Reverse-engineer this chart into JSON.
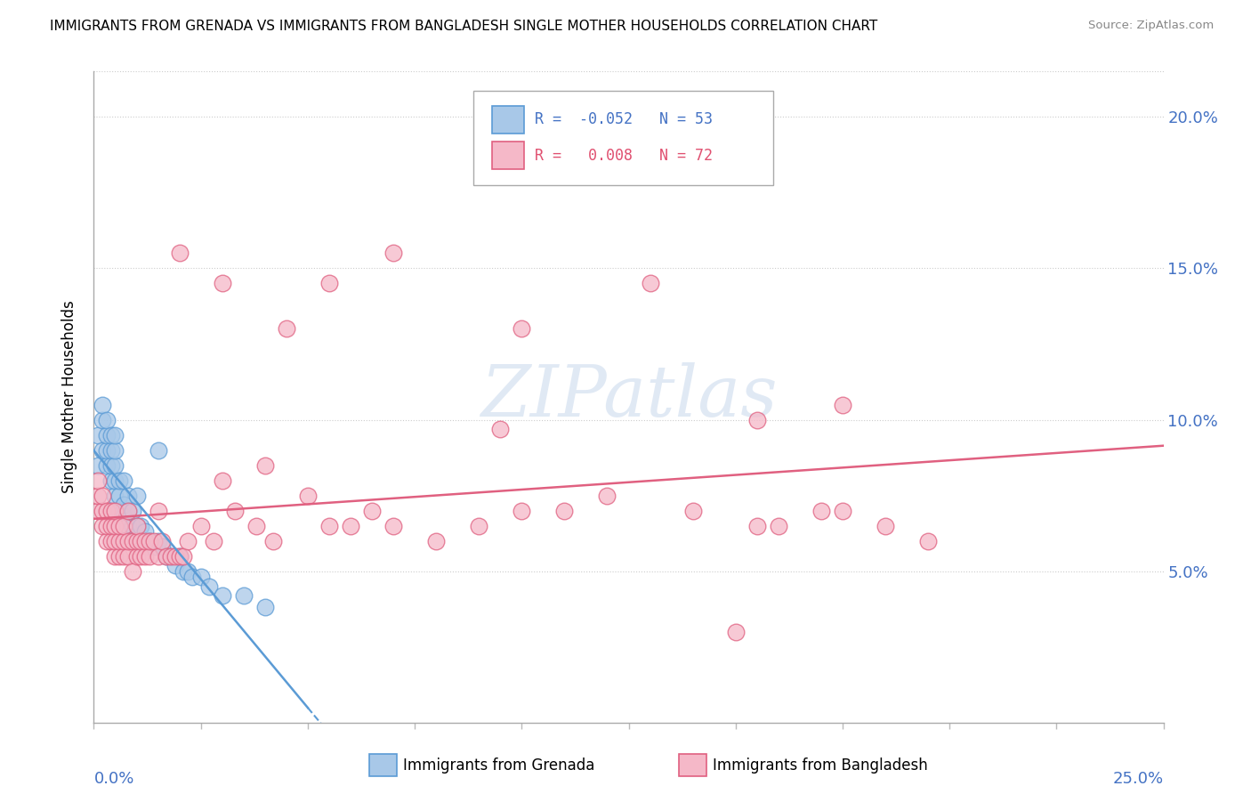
{
  "title": "IMMIGRANTS FROM GRENADA VS IMMIGRANTS FROM BANGLADESH SINGLE MOTHER HOUSEHOLDS CORRELATION CHART",
  "source": "Source: ZipAtlas.com",
  "ylabel": "Single Mother Households",
  "watermark": "ZIPatlas",
  "xlim": [
    0.0,
    0.25
  ],
  "ylim": [
    0.0,
    0.215
  ],
  "yticks": [
    0.05,
    0.1,
    0.15,
    0.2
  ],
  "ytick_labels": [
    "5.0%",
    "10.0%",
    "15.0%",
    "20.0%"
  ],
  "grenada_color": "#a8c8e8",
  "bangladesh_color": "#f5b8c8",
  "grenada_line_color": "#5b9bd5",
  "bangladesh_line_color": "#e06080",
  "grenada_R": -0.052,
  "grenada_N": 53,
  "bangladesh_R": 0.008,
  "bangladesh_N": 72,
  "grenada_x": [
    0.001,
    0.001,
    0.002,
    0.002,
    0.002,
    0.003,
    0.003,
    0.003,
    0.003,
    0.004,
    0.004,
    0.004,
    0.004,
    0.005,
    0.005,
    0.005,
    0.005,
    0.005,
    0.006,
    0.006,
    0.006,
    0.007,
    0.007,
    0.007,
    0.008,
    0.008,
    0.008,
    0.009,
    0.009,
    0.01,
    0.01,
    0.01,
    0.011,
    0.011,
    0.012,
    0.012,
    0.013,
    0.014,
    0.015,
    0.015,
    0.016,
    0.017,
    0.018,
    0.019,
    0.02,
    0.021,
    0.022,
    0.023,
    0.025,
    0.027,
    0.03,
    0.035,
    0.04
  ],
  "grenada_y": [
    0.085,
    0.095,
    0.09,
    0.1,
    0.105,
    0.085,
    0.09,
    0.095,
    0.1,
    0.08,
    0.085,
    0.09,
    0.095,
    0.075,
    0.08,
    0.085,
    0.09,
    0.095,
    0.07,
    0.075,
    0.08,
    0.068,
    0.072,
    0.08,
    0.065,
    0.07,
    0.075,
    0.065,
    0.07,
    0.06,
    0.065,
    0.075,
    0.06,
    0.065,
    0.058,
    0.063,
    0.06,
    0.058,
    0.06,
    0.09,
    0.058,
    0.055,
    0.055,
    0.052,
    0.055,
    0.05,
    0.05,
    0.048,
    0.048,
    0.045,
    0.042,
    0.042,
    0.038
  ],
  "bangladesh_x": [
    0.001,
    0.001,
    0.001,
    0.002,
    0.002,
    0.002,
    0.003,
    0.003,
    0.003,
    0.004,
    0.004,
    0.004,
    0.005,
    0.005,
    0.005,
    0.005,
    0.006,
    0.006,
    0.006,
    0.007,
    0.007,
    0.007,
    0.008,
    0.008,
    0.008,
    0.009,
    0.009,
    0.01,
    0.01,
    0.01,
    0.011,
    0.011,
    0.012,
    0.012,
    0.013,
    0.013,
    0.014,
    0.015,
    0.015,
    0.016,
    0.017,
    0.018,
    0.019,
    0.02,
    0.021,
    0.022,
    0.025,
    0.028,
    0.03,
    0.033,
    0.038,
    0.042,
    0.05,
    0.055,
    0.065,
    0.07,
    0.08,
    0.09,
    0.1,
    0.11,
    0.12,
    0.14,
    0.155,
    0.16,
    0.17,
    0.175,
    0.185,
    0.195,
    0.15,
    0.095,
    0.06,
    0.04
  ],
  "bangladesh_y": [
    0.07,
    0.075,
    0.08,
    0.065,
    0.07,
    0.075,
    0.06,
    0.065,
    0.07,
    0.06,
    0.065,
    0.07,
    0.055,
    0.06,
    0.065,
    0.07,
    0.055,
    0.06,
    0.065,
    0.055,
    0.06,
    0.065,
    0.055,
    0.06,
    0.07,
    0.05,
    0.06,
    0.055,
    0.06,
    0.065,
    0.055,
    0.06,
    0.055,
    0.06,
    0.055,
    0.06,
    0.06,
    0.055,
    0.07,
    0.06,
    0.055,
    0.055,
    0.055,
    0.055,
    0.055,
    0.06,
    0.065,
    0.06,
    0.08,
    0.07,
    0.065,
    0.06,
    0.075,
    0.065,
    0.07,
    0.065,
    0.06,
    0.065,
    0.07,
    0.07,
    0.075,
    0.07,
    0.065,
    0.065,
    0.07,
    0.07,
    0.065,
    0.06,
    0.03,
    0.097,
    0.065,
    0.085
  ],
  "bangladesh_high_x": [
    0.02,
    0.03,
    0.045,
    0.055,
    0.07,
    0.1,
    0.13,
    0.155,
    0.175
  ],
  "bangladesh_high_y": [
    0.155,
    0.145,
    0.13,
    0.145,
    0.155,
    0.13,
    0.145,
    0.1,
    0.105
  ]
}
